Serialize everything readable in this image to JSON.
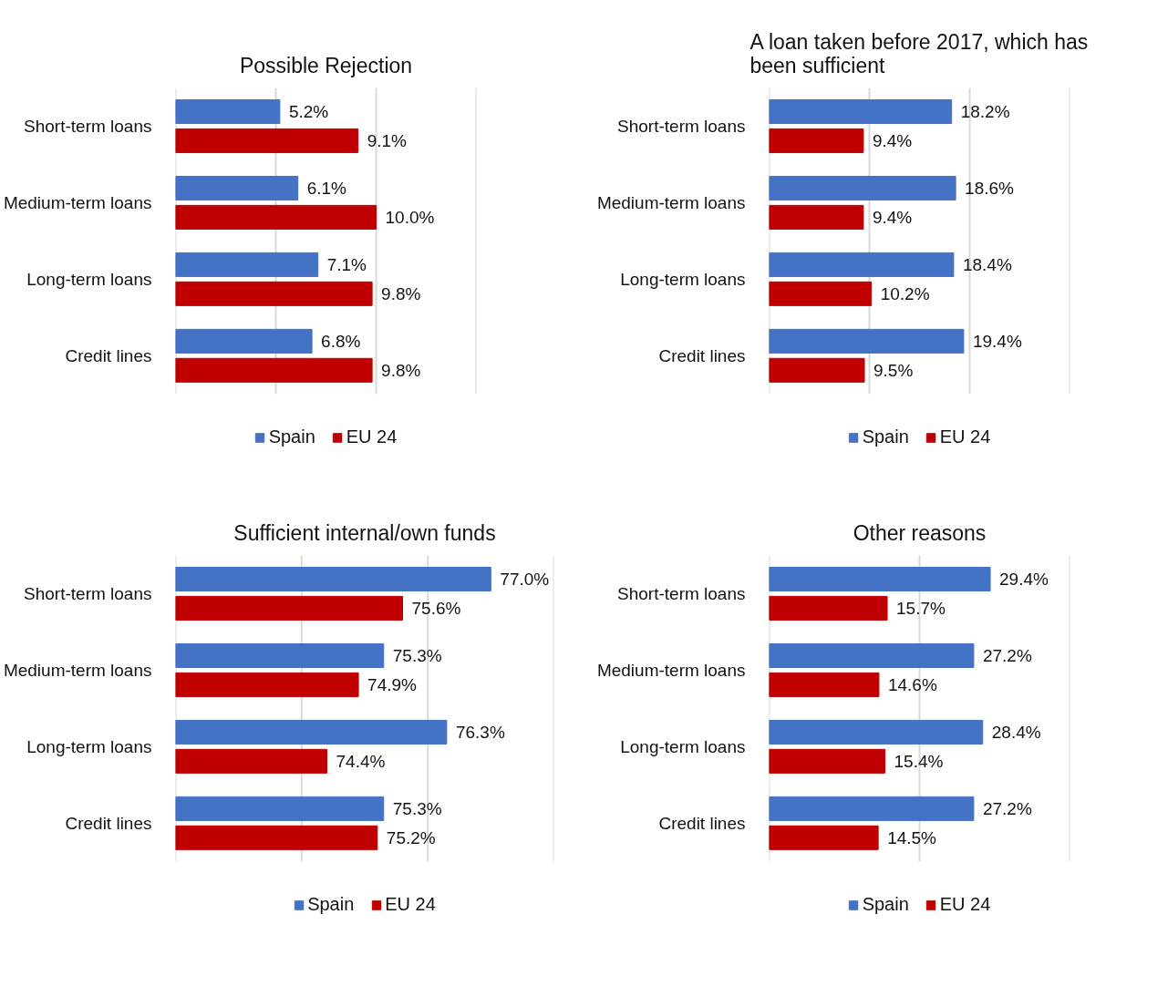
{
  "chart_data": [
    {
      "type": "bar",
      "orientation": "horizontal",
      "title": "Possible Rejection",
      "categories": [
        "Short-term loans",
        "Medium-term loans",
        "Long-term loans",
        "Credit lines"
      ],
      "series": [
        {
          "name": "Spain",
          "color": "#4472c4",
          "values": [
            5.2,
            6.1,
            7.1,
            6.8
          ],
          "value_labels": [
            "5.2%",
            "6.1%",
            "7.1%",
            "6.8%"
          ]
        },
        {
          "name": "EU 24",
          "color": "#c00000",
          "values": [
            9.1,
            10.0,
            9.8,
            9.8
          ],
          "value_labels": [
            "9.1%",
            "10.0%",
            "9.8%",
            "9.8%"
          ]
        }
      ],
      "xlim": [
        0,
        15
      ],
      "xticks": [
        {
          "value": 0,
          "label": null
        },
        {
          "value": 5,
          "label": null
        },
        {
          "value": 10,
          "label": null
        },
        {
          "value": 15,
          "label": null
        }
      ],
      "grid": "x",
      "legend": "bottom",
      "tick_labels": "y"
    },
    {
      "type": "bar",
      "orientation": "horizontal",
      "title": "A loan taken before 2017, which has been sufficient",
      "categories": [
        "Short-term loans",
        "Medium-term loans",
        "Long-term loans",
        "Credit lines"
      ],
      "series": [
        {
          "name": "Spain",
          "color": "#4472c4",
          "values": [
            18.2,
            18.6,
            18.4,
            19.4
          ],
          "value_labels": [
            "18.2%",
            "18.6%",
            "18.4%",
            "19.4%"
          ]
        },
        {
          "name": "EU 24",
          "color": "#c00000",
          "values": [
            9.4,
            9.4,
            10.2,
            9.5
          ],
          "value_labels": [
            "9.4%",
            "9.4%",
            "10.2%",
            "9.5%"
          ]
        }
      ],
      "xlim": [
        0,
        30
      ],
      "xticks": [
        {
          "value": 0,
          "label": null
        },
        {
          "value": 10,
          "label": null
        },
        {
          "value": 20,
          "label": null
        },
        {
          "value": 30,
          "label": null
        }
      ],
      "grid": "x",
      "legend": "bottom",
      "tick_labels": "y"
    },
    {
      "type": "bar",
      "orientation": "horizontal",
      "title": "Sufficient internal/own funds",
      "categories": [
        "Short-term loans",
        "Medium-term loans",
        "Long-term loans",
        "Credit lines"
      ],
      "series": [
        {
          "name": "Spain",
          "color": "#4472c4",
          "values": [
            77.0,
            75.3,
            76.3,
            75.3
          ],
          "value_labels": [
            "77.0%",
            "75.3%",
            "76.3%",
            "75.3%"
          ]
        },
        {
          "name": "EU 24",
          "color": "#c00000",
          "values": [
            75.6,
            74.9,
            74.4,
            75.2
          ],
          "value_labels": [
            "75.6%",
            "74.9%",
            "74.4%",
            "75.2%"
          ]
        }
      ],
      "xlim": [
        72,
        78
      ],
      "xticks": [
        {
          "value": 72,
          "label": null
        },
        {
          "value": 74,
          "label": null
        },
        {
          "value": 76,
          "label": null
        },
        {
          "value": 78,
          "label": null
        }
      ],
      "grid": "x",
      "legend": "bottom",
      "tick_labels": "y"
    },
    {
      "type": "bar",
      "orientation": "horizontal",
      "title": "Other reasons",
      "categories": [
        "Short-term loans",
        "Medium-term loans",
        "Long-term loans",
        "Credit lines"
      ],
      "series": [
        {
          "name": "Spain",
          "color": "#4472c4",
          "values": [
            29.4,
            27.2,
            28.4,
            27.2
          ],
          "value_labels": [
            "29.4%",
            "27.2%",
            "28.4%",
            "27.2%"
          ]
        },
        {
          "name": "EU 24",
          "color": "#c00000",
          "values": [
            15.7,
            14.6,
            15.4,
            14.5
          ],
          "value_labels": [
            "15.7%",
            "14.6%",
            "15.4%",
            "14.5%"
          ]
        }
      ],
      "xlim": [
        0,
        40
      ],
      "xticks": [
        {
          "value": 0,
          "label": null
        },
        {
          "value": 20,
          "label": null
        },
        {
          "value": 40,
          "label": null
        }
      ],
      "grid": "x",
      "legend": "bottom",
      "tick_labels": "y"
    }
  ]
}
